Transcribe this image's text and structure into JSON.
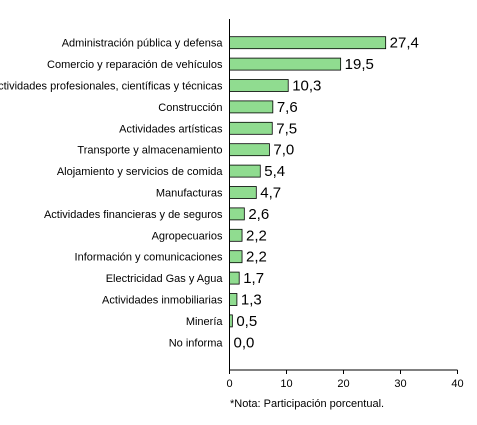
{
  "chart_data": {
    "type": "bar",
    "orientation": "horizontal",
    "categories": [
      "Administración pública y defensa",
      "Comercio y reparación de vehículos",
      "Actividades profesionales, científicas y técnicas",
      "Construcción",
      "Actividades  artísticas",
      "Transporte  y almacenamiento",
      "Alojamiento y servicios de comida",
      "Manufacturas",
      "Actividades financieras y de seguros",
      "Agropecuarios",
      "Información y comunicaciones",
      "Electricidad  Gas y Agua",
      "Actividades inmobiliarias",
      "Minería",
      "No informa"
    ],
    "values": [
      27.4,
      19.5,
      10.3,
      7.6,
      7.5,
      7.0,
      5.4,
      4.7,
      2.6,
      2.2,
      2.2,
      1.7,
      1.3,
      0.5,
      0.0
    ],
    "value_labels": [
      "27,4",
      "19,5",
      "10,3",
      "7,6",
      "7,5",
      "7,0",
      "5,4",
      "4,7",
      "2,6",
      "2,2",
      "2,2",
      "1,7",
      "1,3",
      "0,5",
      "0,0"
    ],
    "xticks": [
      "0",
      "10",
      "20",
      "30",
      "40"
    ],
    "xlim": [
      0,
      40
    ],
    "note": "*Nota: Participación porcentual.",
    "bar_color": "#90dc90",
    "bar_edge_color": "#000000",
    "grid": false
  }
}
